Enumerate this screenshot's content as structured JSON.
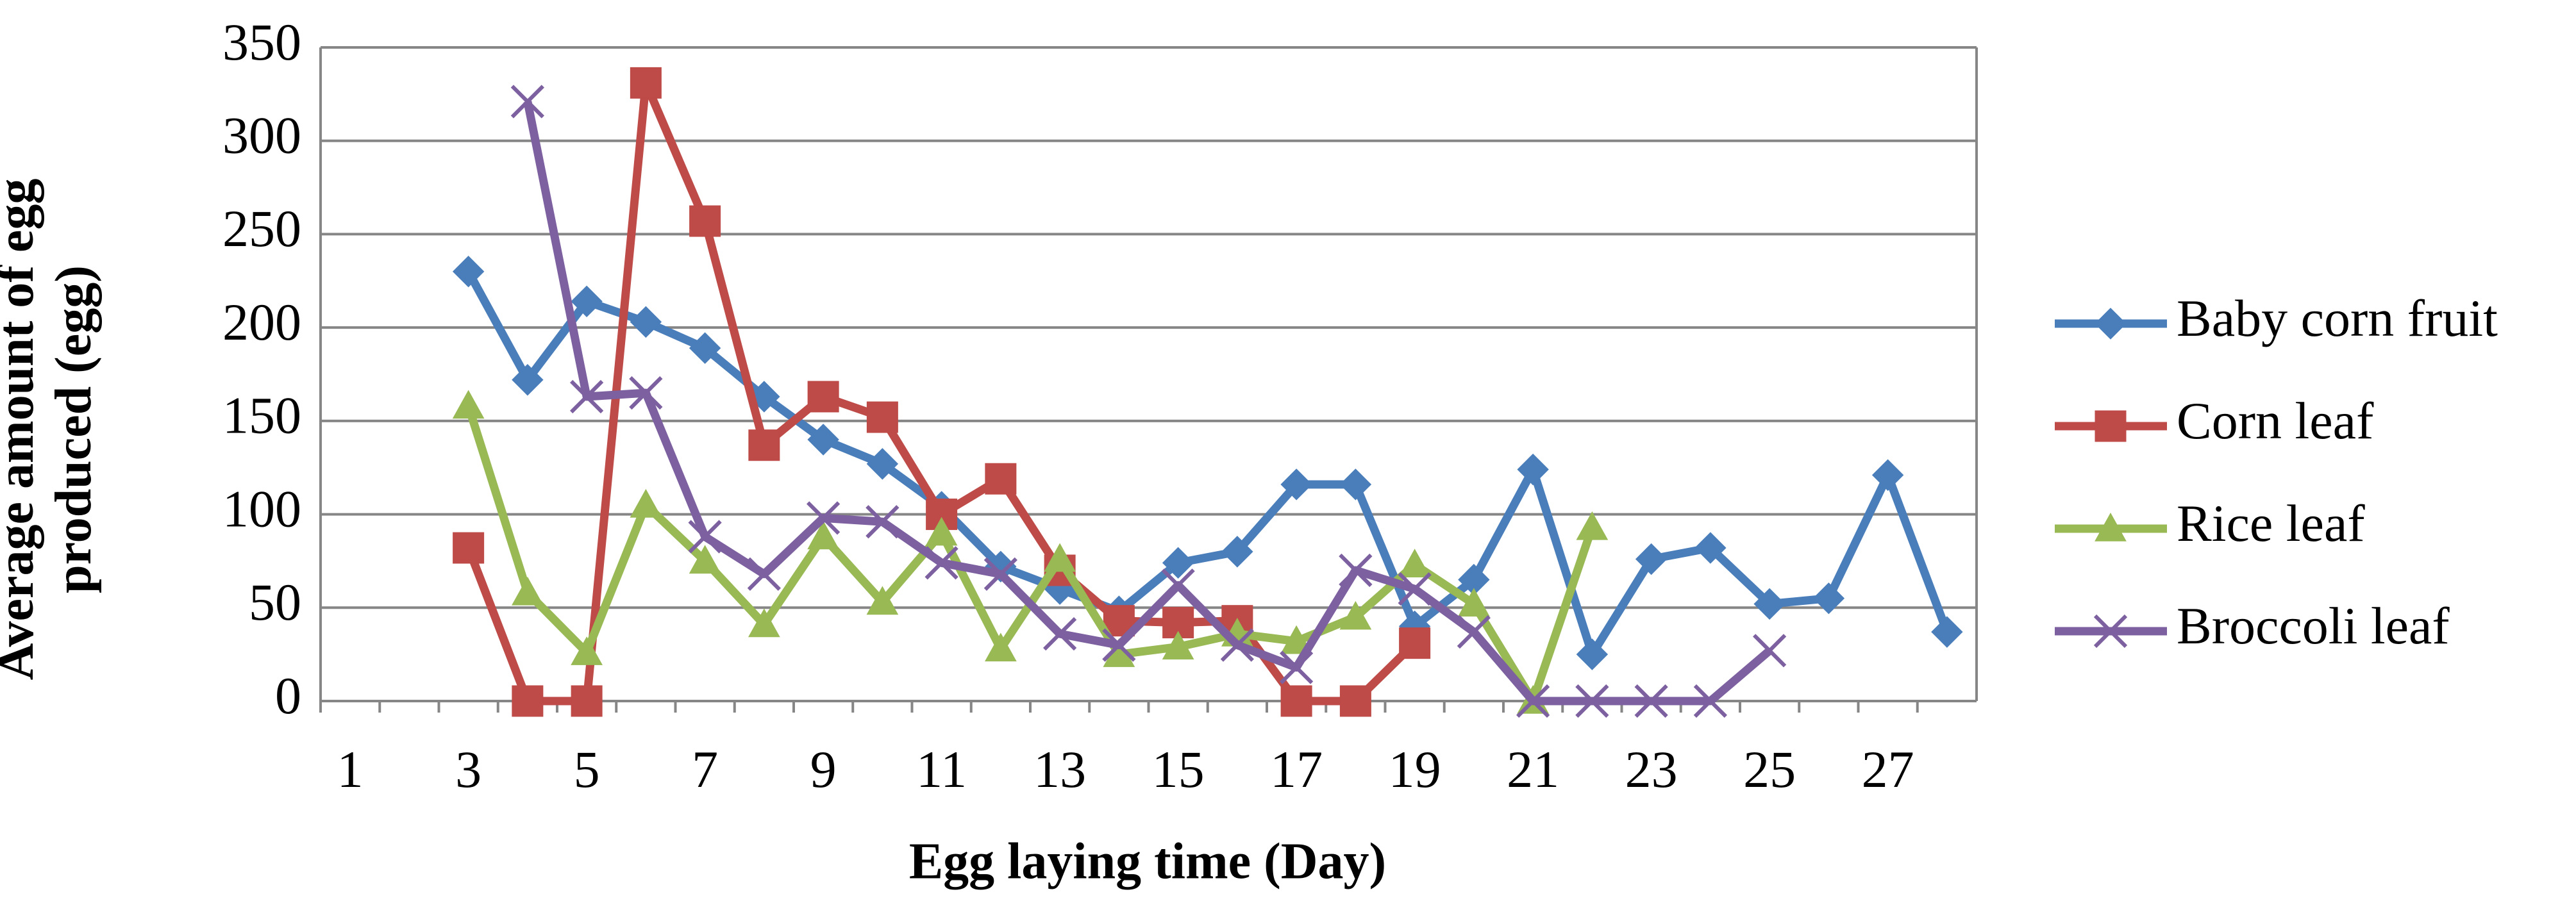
{
  "chart_data": {
    "type": "line",
    "x_label": "Egg laying time (Day)",
    "y_label": "Average amount of egg produced (egg)",
    "categories": [
      "1",
      null,
      "3",
      null,
      "5",
      null,
      "7",
      null,
      "9",
      null,
      "11",
      null,
      "13",
      null,
      "15",
      null,
      "17",
      null,
      "19",
      null,
      "21",
      null,
      "23",
      null,
      "25",
      null,
      "27",
      null
    ],
    "ylim": [
      0,
      350
    ],
    "yticks": [
      0,
      50,
      100,
      150,
      200,
      250,
      300,
      350
    ],
    "grid": true,
    "legend": "right",
    "series": [
      {
        "name": "Baby corn fruit",
        "color": "#4a7ebb",
        "marker": "diamond",
        "values": [
          null,
          null,
          230,
          172,
          214,
          203,
          189,
          163,
          140,
          127,
          104,
          72,
          60,
          48,
          74,
          80,
          116,
          116,
          40,
          65,
          124,
          25,
          76,
          82,
          52,
          55,
          121,
          37
        ]
      },
      {
        "name": "Corn leaf",
        "color": "#be4b48",
        "marker": "square",
        "values": [
          null,
          null,
          82,
          0,
          0,
          331,
          257,
          137,
          163,
          152,
          100,
          119,
          70,
          43,
          42,
          43,
          0,
          0,
          31,
          null,
          null,
          null,
          null,
          null,
          null,
          null,
          null,
          null
        ]
      },
      {
        "name": "Rice leaf",
        "color": "#98b954",
        "marker": "triangle",
        "values": [
          null,
          null,
          158,
          58,
          26,
          105,
          75,
          41,
          88,
          53,
          90,
          28,
          76,
          25,
          29,
          36,
          32,
          45,
          73,
          52,
          0,
          93,
          null,
          null,
          null,
          null,
          null,
          null
        ]
      },
      {
        "name": "Broccoli leaf",
        "color": "#7d60a0",
        "marker": "x",
        "values": [
          null,
          null,
          null,
          321,
          163,
          165,
          88,
          68,
          98,
          96,
          74,
          68,
          36,
          30,
          62,
          30,
          18,
          70,
          60,
          37,
          0,
          0,
          0,
          0,
          27,
          null,
          null,
          null
        ]
      }
    ]
  }
}
